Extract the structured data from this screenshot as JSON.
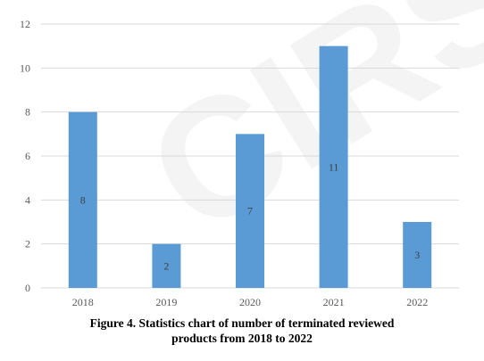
{
  "watermark": "CIRS",
  "caption": {
    "line1": "Figure 4. Statistics chart of number of terminated reviewed",
    "line2": "products from 2018 to 2022"
  },
  "colors": {
    "bar": "#5b9bd5",
    "gridline": "#d9d9d9",
    "axis_text": "#595959"
  },
  "chart_data": {
    "type": "bar",
    "title": "",
    "xlabel": "",
    "ylabel": "",
    "categories": [
      "2018",
      "2019",
      "2020",
      "2021",
      "2022"
    ],
    "values": [
      8,
      2,
      7,
      11,
      3
    ],
    "data_labels": [
      "8",
      "2",
      "7",
      "11",
      "3"
    ],
    "ylim": [
      0,
      12
    ],
    "yticks": [
      0,
      2,
      4,
      6,
      8,
      10,
      12
    ],
    "grid": true,
    "legend": "none",
    "data_label_position": "center"
  }
}
